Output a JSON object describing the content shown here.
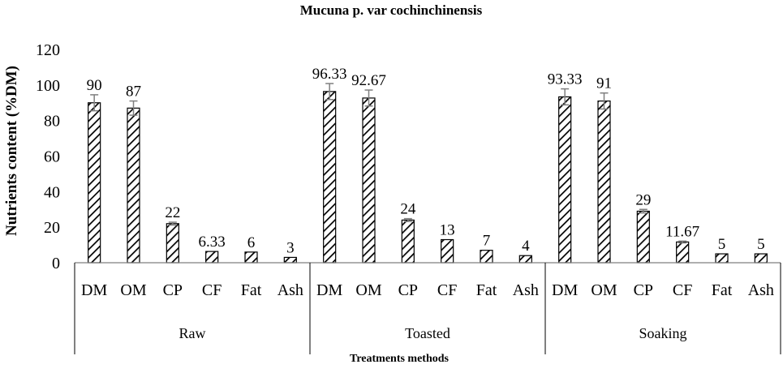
{
  "chart_data": {
    "type": "bar",
    "title": "Mucuna p. var cochinchinensis",
    "ylabel": "Nutrients content (%DM)",
    "xlabel": "Treatments methods",
    "ylim": [
      0,
      120
    ],
    "yticks": [
      0,
      20,
      40,
      60,
      80,
      100,
      120
    ],
    "grid": false,
    "legend": "none",
    "bar_pattern": "diagonal-hatch",
    "bar_color": "#000000",
    "groups": [
      {
        "name": "Raw",
        "categories": [
          "DM",
          "OM",
          "CP",
          "CF",
          "Fat",
          "Ash"
        ],
        "values": [
          90,
          87,
          22,
          6.33,
          6,
          3
        ],
        "labels": [
          "90",
          "87",
          "22",
          "6.33",
          "6",
          "3"
        ],
        "errors": [
          4.5,
          4,
          0.8,
          0,
          0,
          0
        ]
      },
      {
        "name": "Toasted",
        "categories": [
          "DM",
          "OM",
          "CP",
          "CF",
          "Fat",
          "Ash"
        ],
        "values": [
          96.33,
          92.67,
          24,
          13,
          7,
          4
        ],
        "labels": [
          "96.33",
          "92.67",
          "24",
          "13",
          "7",
          "4"
        ],
        "errors": [
          4.5,
          4.5,
          0.8,
          0,
          0,
          0
        ]
      },
      {
        "name": "Soaking",
        "categories": [
          "DM",
          "OM",
          "CP",
          "CF",
          "Fat",
          "Ash"
        ],
        "values": [
          93.33,
          91,
          29,
          11.67,
          5,
          5
        ],
        "labels": [
          "93.33",
          "91",
          "29",
          "11.67",
          "5",
          "5"
        ],
        "errors": [
          4.5,
          4.5,
          1,
          0.5,
          0,
          0
        ]
      }
    ]
  }
}
